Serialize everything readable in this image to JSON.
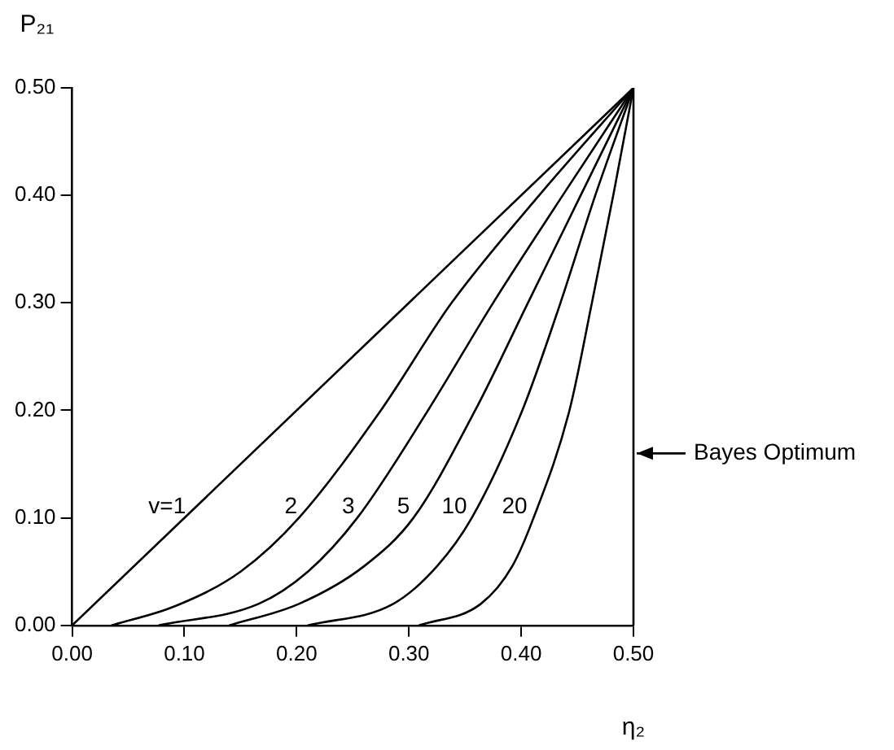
{
  "chart_data": {
    "type": "line",
    "xlabel": "η₂",
    "ylabel": "P₂₁",
    "xlim": [
      0,
      0.5
    ],
    "ylim": [
      0,
      0.5
    ],
    "xticks": [
      {
        "value": 0,
        "label": "0.00"
      },
      {
        "value": 0.1,
        "label": "0.10"
      },
      {
        "value": 0.2,
        "label": "0.20"
      },
      {
        "value": 0.3,
        "label": "0.30"
      },
      {
        "value": 0.4,
        "label": "0.40"
      },
      {
        "value": 0.5,
        "label": "0.50"
      }
    ],
    "yticks": [
      {
        "value": 0,
        "label": "0.00"
      },
      {
        "value": 0.1,
        "label": "0.10"
      },
      {
        "value": 0.2,
        "label": "0.20"
      },
      {
        "value": 0.3,
        "label": "0.30"
      },
      {
        "value": 0.4,
        "label": "0.40"
      },
      {
        "value": 0.5,
        "label": "0.50"
      }
    ],
    "grid": false,
    "legend": false,
    "marker": "none",
    "line_style": "solid",
    "ref_lines": [
      {
        "axis": "x",
        "value": 0.5,
        "label": "Bayes Optimum",
        "color": "#000000"
      }
    ],
    "series": [
      {
        "name": "v=1",
        "color": "#000000",
        "x": [
          0,
          0.5
        ],
        "values": [
          0,
          0.5
        ]
      },
      {
        "name": "2",
        "color": "#000000",
        "x": [
          0.035,
          0.092,
          0.15,
          0.202,
          0.275,
          0.338,
          0.416,
          0.5
        ],
        "values": [
          0,
          0.018,
          0.05,
          0.1,
          0.2,
          0.3,
          0.4,
          0.5
        ]
      },
      {
        "name": "3",
        "color": "#000000",
        "x": [
          0.077,
          0.166,
          0.21,
          0.254,
          0.317,
          0.375,
          0.437,
          0.5
        ],
        "values": [
          0,
          0.02,
          0.05,
          0.1,
          0.2,
          0.3,
          0.4,
          0.5
        ]
      },
      {
        "name": "5",
        "color": "#000000",
        "x": [
          0.14,
          0.202,
          0.26,
          0.304,
          0.359,
          0.406,
          0.453,
          0.5
        ],
        "values": [
          0,
          0.02,
          0.055,
          0.1,
          0.2,
          0.3,
          0.4,
          0.5
        ]
      },
      {
        "name": "10",
        "color": "#000000",
        "x": [
          0.21,
          0.286,
          0.325,
          0.356,
          0.401,
          0.435,
          0.466,
          0.5
        ],
        "values": [
          0,
          0.02,
          0.055,
          0.1,
          0.2,
          0.3,
          0.4,
          0.5
        ]
      },
      {
        "name": "20",
        "color": "#000000",
        "x": [
          0.309,
          0.364,
          0.392,
          0.411,
          0.443,
          0.463,
          0.482,
          0.5
        ],
        "values": [
          0,
          0.02,
          0.055,
          0.1,
          0.2,
          0.3,
          0.4,
          0.5
        ]
      }
    ]
  }
}
